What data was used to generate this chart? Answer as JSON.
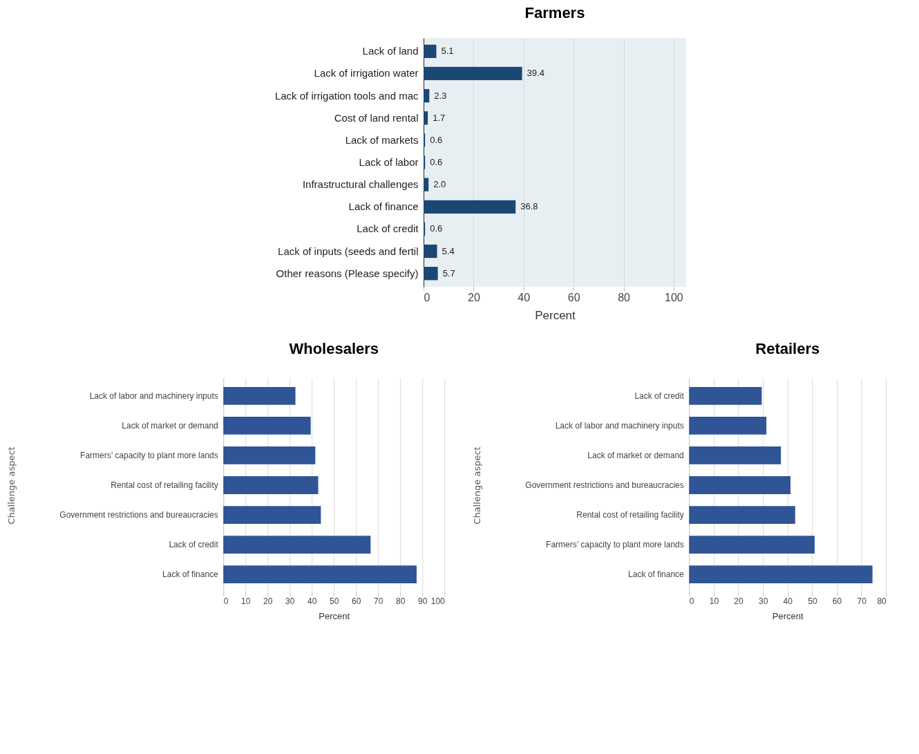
{
  "chart_data": [
    {
      "type": "bar",
      "orientation": "horizontal",
      "title": "Farmers",
      "xlabel": "Percent",
      "categories": [
        "Lack of land",
        "Lack of irrigation water",
        "Lack of irrigation tools and mac",
        "Cost of land rental",
        "Lack of markets",
        "Lack of labor",
        "Infrastructural challenges",
        "Lack of finance",
        "Lack of credit",
        "Lack of inputs (seeds and fertil",
        "Other reasons (Please specify)"
      ],
      "values": [
        5.1,
        39.4,
        2.3,
        1.7,
        0.6,
        0.6,
        2.0,
        36.8,
        0.6,
        5.4,
        5.7
      ],
      "color": "#1b4872",
      "xlim": [
        0,
        105
      ],
      "xticks": [
        0,
        20,
        40,
        60,
        80,
        100
      ],
      "grid": "x",
      "value_labels": [
        "5.1",
        "39.4",
        "2.3",
        "1.7",
        "0.6",
        "0.6",
        "2.0",
        "36.8",
        "0.6",
        "5.4",
        "5.7"
      ]
    },
    {
      "type": "bar",
      "orientation": "horizontal",
      "title": "Wholesalers",
      "xlabel": "Percent",
      "ylabel": "Challenge aspect",
      "categories": [
        "Lack of labor and machinery inputs",
        "Lack of market or demand",
        "Farmers’ capacity to plant more lands",
        "Rental cost of retailing facility",
        "Government restrictions and bureaucracies",
        "Lack of credit",
        "Lack of finance"
      ],
      "values": [
        32.6,
        39.5,
        41.6,
        42.9,
        44.1,
        66.6,
        87.4
      ],
      "color": "#2f5597",
      "xlim": [
        0,
        100
      ],
      "xticks": [
        0,
        10,
        20,
        30,
        40,
        50,
        60,
        70,
        80,
        90,
        100
      ],
      "grid": "x"
    },
    {
      "type": "bar",
      "orientation": "horizontal",
      "title": "Retailers",
      "xlabel": "Percent",
      "ylabel": "Challenge aspect",
      "categories": [
        "Lack of credit",
        "Lack of labor and machinery inputs",
        "Lack of market or demand",
        "Government restrictions and bureaucracies",
        "Rental cost of retailing facility",
        "Farmers’ capacity to plant more lands",
        "Lack of finance"
      ],
      "values": [
        29.5,
        31.4,
        37.3,
        41.2,
        43.1,
        51.0,
        74.5
      ],
      "color": "#2f5597",
      "xlim": [
        0,
        80
      ],
      "xticks": [
        0,
        10,
        20,
        30,
        40,
        50,
        60,
        70,
        80
      ],
      "grid": "x"
    }
  ]
}
